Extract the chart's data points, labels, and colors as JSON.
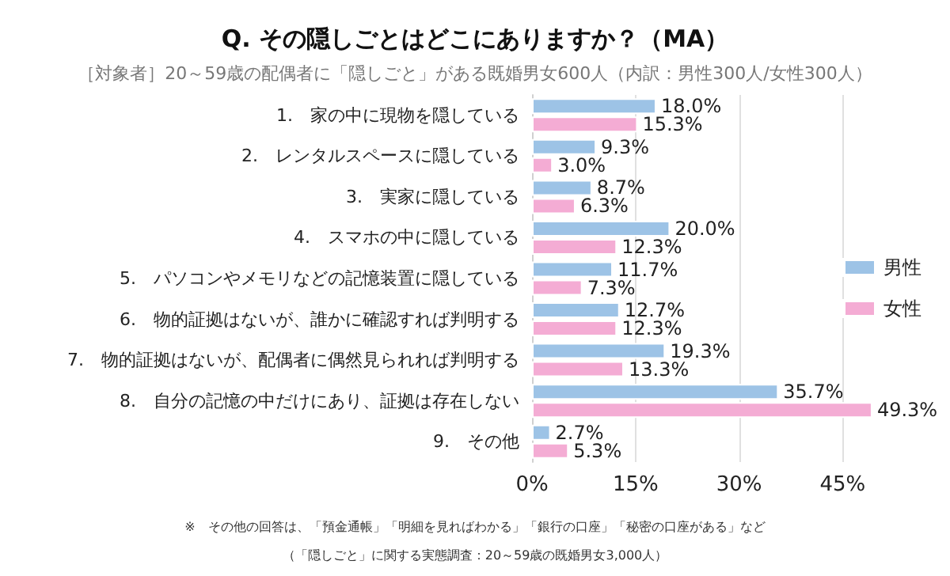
{
  "chart_data": {
    "type": "bar",
    "orientation": "horizontal",
    "title": "Q. その隠しごとはどこにありますか？（MA）",
    "subtitle": "［対象者］20～59歳の配偶者に「隠しごと」がある既婚男女600人（内訳：男性300人/女性300人）",
    "categories": [
      "1.　家の中に現物を隠している",
      "2.　レンタルスペースに隠している",
      "3.　実家に隠している",
      "4.　スマホの中に隠している",
      "5.　パソコンやメモリなどの記憶装置に隠している",
      "6.　物的証拠はないが、誰かに確認すれば判明する",
      "7.　物的証拠はないが、配偶者に偶然見られれば判明する",
      "8.　自分の記憶の中だけにあり、証拠は存在しない",
      "9.　その他"
    ],
    "series": [
      {
        "name": "男性",
        "color": "#9dc3e6",
        "values": [
          18.0,
          9.3,
          8.7,
          20.0,
          11.7,
          12.7,
          19.3,
          35.7,
          2.7
        ],
        "value_labels": [
          "18.0%",
          "9.3%",
          "8.7%",
          "20.0%",
          "11.7%",
          "12.7%",
          "19.3%",
          "35.7%",
          "2.7%"
        ]
      },
      {
        "name": "女性",
        "color": "#f4acd4",
        "values": [
          15.3,
          3.0,
          6.3,
          12.3,
          7.3,
          12.3,
          13.3,
          49.3,
          5.3
        ],
        "value_labels": [
          "15.3%",
          "3.0%",
          "6.3%",
          "12.3%",
          "7.3%",
          "12.3%",
          "13.3%",
          "49.3%",
          "5.3%"
        ]
      }
    ],
    "xlim": [
      0,
      50
    ],
    "xticks": [
      {
        "value": 0,
        "label": "0%"
      },
      {
        "value": 15,
        "label": "15%"
      },
      {
        "value": 30,
        "label": "30%"
      },
      {
        "value": 45,
        "label": "45%"
      }
    ],
    "grid": "x",
    "legend": "right",
    "annotations": [
      "※　その他の回答は、「預金通帳」「明細を見ればわかる」「銀行の口座」「秘密の口座がある」など",
      "（「隠しごと」に関する実態調査：20～59歳の既婚男女3,000人）"
    ]
  }
}
